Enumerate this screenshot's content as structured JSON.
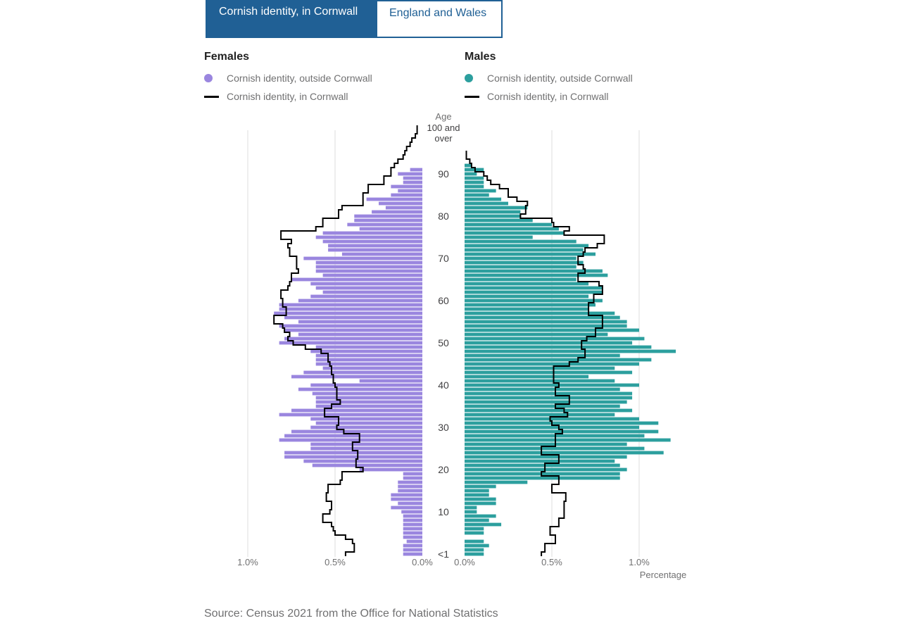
{
  "tabs": [
    {
      "label": "Cornish identity, in Cornwall",
      "active": true
    },
    {
      "label": "England and Wales",
      "active": false
    }
  ],
  "legend": {
    "females": {
      "title": "Females",
      "items": [
        {
          "label": "Cornish identity, outside Cornwall",
          "symbol": "dot",
          "color": "#9a86df"
        },
        {
          "label": "Cornish identity, in Cornwall",
          "symbol": "line",
          "color": "#000000"
        }
      ]
    },
    "males": {
      "title": "Males",
      "items": [
        {
          "label": "Cornish identity, outside Cornwall",
          "symbol": "dot",
          "color": "#2c9f9e"
        },
        {
          "label": "Cornish identity, in Cornwall",
          "symbol": "line",
          "color": "#000000"
        }
      ]
    }
  },
  "source": "Source: Census 2021 from the Office for National Statistics",
  "chart_data": {
    "type": "bar",
    "subtype": "population-pyramid",
    "age_axis_title": "Age",
    "top_age_label": "100 and over",
    "age_ticks": [
      {
        "age": 0,
        "label": "<1"
      },
      {
        "age": 10,
        "label": "10"
      },
      {
        "age": 20,
        "label": "20"
      },
      {
        "age": 30,
        "label": "30"
      },
      {
        "age": 40,
        "label": "40"
      },
      {
        "age": 50,
        "label": "50"
      },
      {
        "age": 60,
        "label": "60"
      },
      {
        "age": 70,
        "label": "70"
      },
      {
        "age": 80,
        "label": "80"
      },
      {
        "age": 90,
        "label": "90"
      }
    ],
    "x_axis_title": "Percentage",
    "female_x_ticks": [
      {
        "value": 1.0,
        "label": "1.0%"
      },
      {
        "value": 0.5,
        "label": "0.5%"
      },
      {
        "value": 0.0,
        "label": "0.0%"
      }
    ],
    "male_x_ticks": [
      {
        "value": 0.0,
        "label": "0.0%"
      },
      {
        "value": 0.5,
        "label": "0.5%"
      },
      {
        "value": 1.0,
        "label": "1.0%"
      }
    ],
    "xlim": [
      0,
      1.0
    ],
    "grid": true,
    "colors": {
      "females": "#9a86df",
      "males": "#2c9f9e",
      "in_cornwall": "#000000"
    },
    "series": [
      {
        "name": "Cornish identity, outside Cornwall",
        "side": "females",
        "values": [
          0.11,
          0.11,
          0.11,
          0.09,
          0.11,
          0.11,
          0.11,
          0.11,
          0.11,
          0.11,
          0.12,
          0.18,
          0.14,
          0.18,
          0.18,
          0.14,
          0.14,
          0.14,
          0.11,
          0.11,
          0.36,
          0.63,
          0.68,
          0.79,
          0.79,
          0.64,
          0.64,
          0.82,
          0.79,
          0.75,
          0.64,
          0.61,
          0.64,
          0.82,
          0.75,
          0.61,
          0.61,
          0.61,
          0.63,
          0.71,
          0.64,
          0.36,
          0.75,
          0.68,
          0.57,
          0.61,
          0.61,
          0.61,
          0.64,
          0.61,
          0.82,
          0.79,
          0.71,
          0.79,
          0.82,
          0.71,
          0.79,
          0.85,
          0.82,
          0.82,
          0.71,
          0.64,
          0.57,
          0.61,
          0.64,
          0.75,
          0.57,
          0.61,
          0.61,
          0.61,
          0.68,
          0.46,
          0.54,
          0.54,
          0.57,
          0.61,
          0.57,
          0.36,
          0.43,
          0.39,
          0.39,
          0.29,
          0.21,
          0.25,
          0.32,
          0.18,
          0.14,
          0.18,
          0.11,
          0.11,
          0.14,
          0.07
        ]
      },
      {
        "name": "Cornish identity, outside Cornwall",
        "side": "males",
        "values": [
          0.11,
          0.11,
          0.14,
          0.11,
          0,
          0.11,
          0.11,
          0.21,
          0.14,
          0.18,
          0.07,
          0.07,
          0.18,
          0.18,
          0.14,
          0.14,
          0.18,
          0.36,
          0.89,
          0.89,
          0.93,
          0.89,
          0.86,
          0.93,
          1.14,
          1.03,
          0.93,
          1.18,
          1.03,
          1.11,
          1.0,
          1.11,
          1.0,
          0.86,
          0.96,
          0.89,
          0.93,
          0.96,
          0.96,
          0.89,
          1.0,
          0.86,
          0.71,
          0.96,
          0.86,
          1.0,
          1.07,
          0.89,
          1.21,
          1.07,
          0.96,
          1.03,
          0.82,
          1.0,
          0.93,
          0.93,
          0.89,
          0.86,
          0.71,
          0.75,
          0.79,
          0.71,
          0.79,
          0.79,
          0.71,
          0.64,
          0.82,
          0.79,
          0.64,
          0.68,
          0.64,
          0.75,
          0.68,
          0.71,
          0.64,
          0.39,
          0.57,
          0.54,
          0.5,
          0.39,
          0.32,
          0.32,
          0.36,
          0.25,
          0.21,
          0.14,
          0.18,
          0.11,
          0.11,
          0.11,
          0.07,
          0.11,
          0.04
        ]
      },
      {
        "name": "Cornish identity, in Cornwall",
        "side": "females",
        "values": [
          0.44,
          0.39,
          0.39,
          0.4,
          0.44,
          0.5,
          0.51,
          0.52,
          0.57,
          0.57,
          0.53,
          0.52,
          0.52,
          0.55,
          0.55,
          0.54,
          0.54,
          0.47,
          0.46,
          0.46,
          0.34,
          0.38,
          0.38,
          0.37,
          0.37,
          0.4,
          0.4,
          0.36,
          0.36,
          0.45,
          0.49,
          0.48,
          0.48,
          0.56,
          0.56,
          0.52,
          0.47,
          0.49,
          0.49,
          0.49,
          0.5,
          0.51,
          0.51,
          0.52,
          0.52,
          0.53,
          0.54,
          0.54,
          0.58,
          0.67,
          0.74,
          0.77,
          0.76,
          0.79,
          0.8,
          0.85,
          0.85,
          0.78,
          0.78,
          0.8,
          0.8,
          0.81,
          0.81,
          0.77,
          0.76,
          0.75,
          0.75,
          0.71,
          0.72,
          0.72,
          0.72,
          0.76,
          0.76,
          0.77,
          0.75,
          0.81,
          0.81,
          0.61,
          0.57,
          0.57,
          0.48,
          0.48,
          0.46,
          0.34,
          0.34,
          0.34,
          0.31,
          0.31,
          0.22,
          0.22,
          0.18,
          0.18,
          0.16,
          0.14,
          0.11,
          0.1,
          0.09,
          0.07,
          0.06,
          0.04,
          0.03,
          0.03
        ]
      },
      {
        "name": "Cornish identity, in Cornwall",
        "side": "males",
        "values": [
          0.44,
          0.46,
          0.46,
          0.52,
          0.52,
          0.49,
          0.49,
          0.54,
          0.54,
          0.57,
          0.57,
          0.57,
          0.57,
          0.58,
          0.58,
          0.5,
          0.5,
          0.54,
          0.54,
          0.44,
          0.46,
          0.46,
          0.54,
          0.54,
          0.44,
          0.44,
          0.52,
          0.52,
          0.52,
          0.56,
          0.54,
          0.5,
          0.49,
          0.59,
          0.57,
          0.52,
          0.6,
          0.6,
          0.52,
          0.52,
          0.54,
          0.51,
          0.51,
          0.51,
          0.51,
          0.6,
          0.65,
          0.69,
          0.69,
          0.67,
          0.67,
          0.7,
          0.75,
          0.75,
          0.79,
          0.79,
          0.79,
          0.71,
          0.71,
          0.71,
          0.74,
          0.74,
          0.79,
          0.79,
          0.77,
          0.65,
          0.65,
          0.69,
          0.68,
          0.65,
          0.65,
          0.68,
          0.69,
          0.76,
          0.8,
          0.8,
          0.57,
          0.6,
          0.51,
          0.5,
          0.32,
          0.35,
          0.35,
          0.36,
          0.3,
          0.25,
          0.25,
          0.2,
          0.15,
          0.13,
          0.11,
          0.06,
          0.04,
          0.03,
          0.01,
          0.01
        ]
      }
    ]
  }
}
